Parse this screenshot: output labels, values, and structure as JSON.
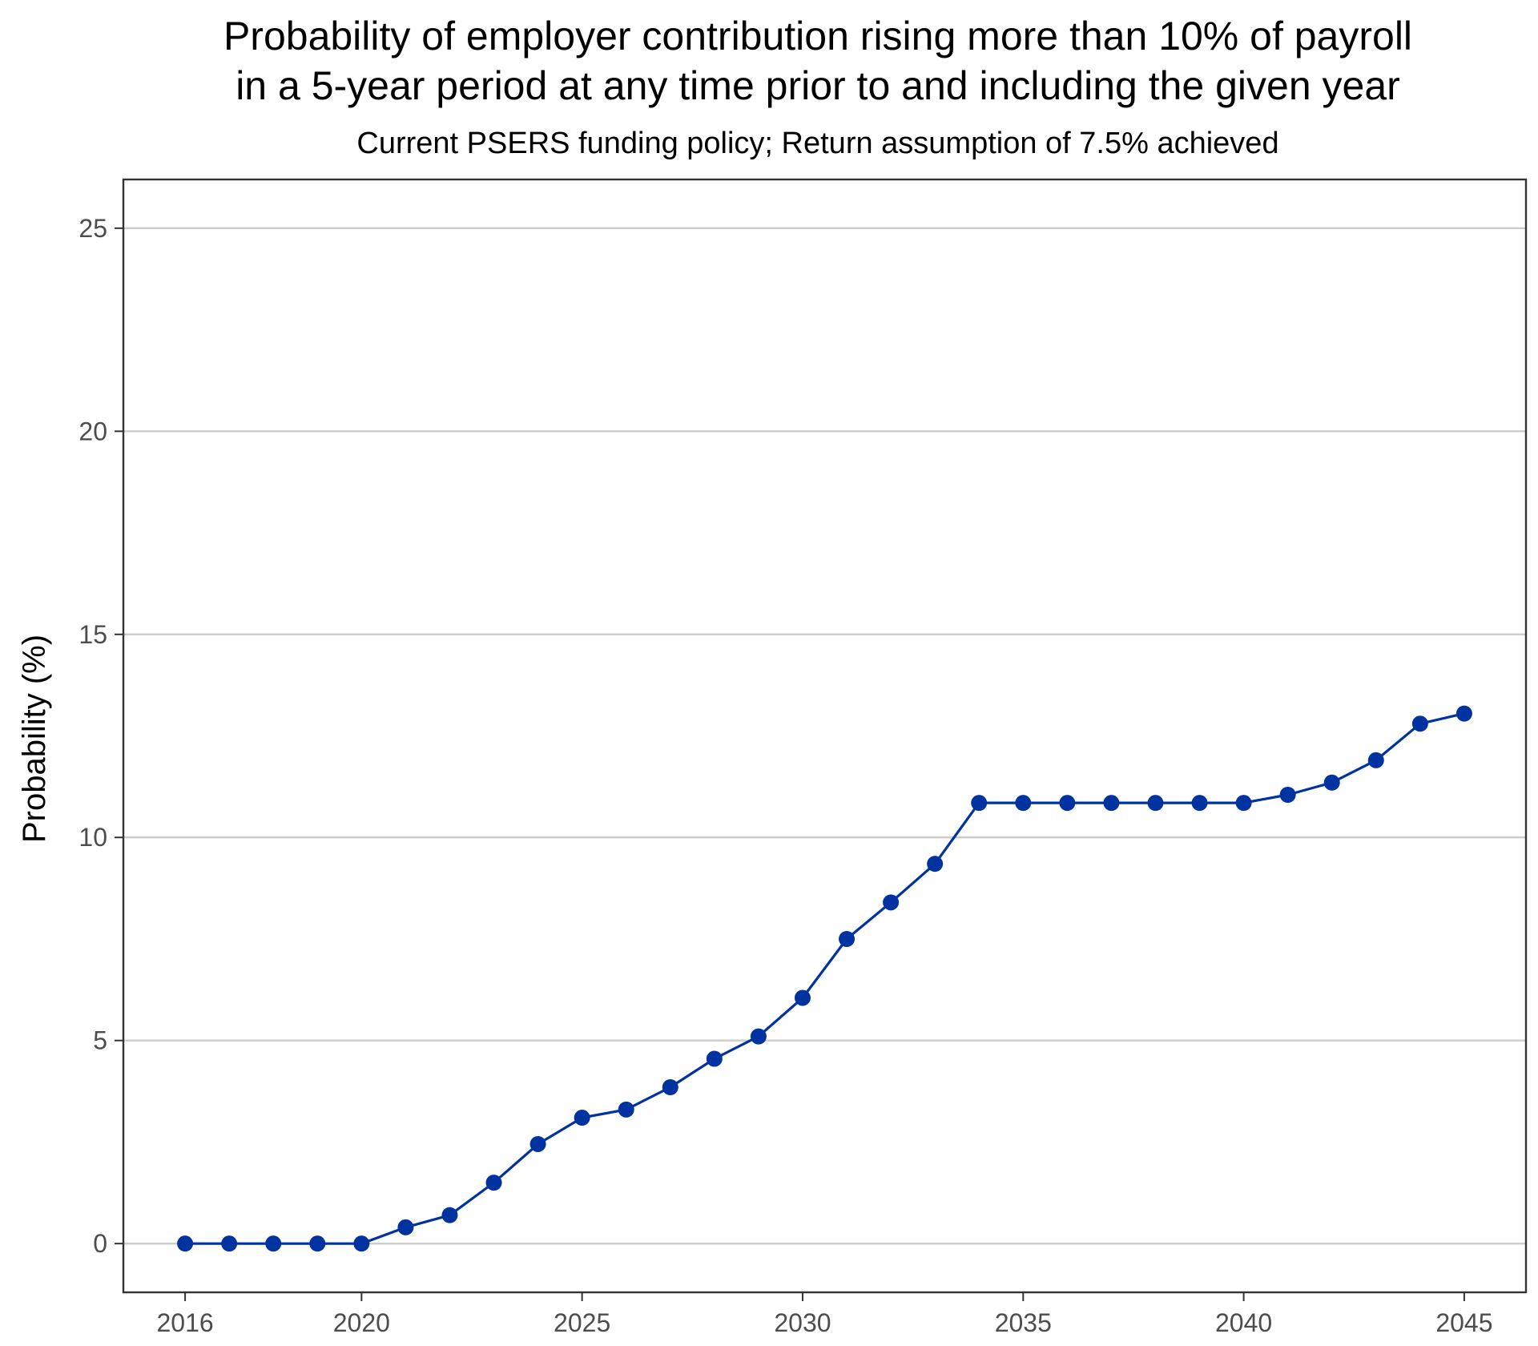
{
  "chart_data": {
    "type": "line",
    "title_lines": [
      "Probability of employer contribution rising more than 10% of payroll",
      "in a 5-year period at any time prior to and including the given year"
    ],
    "subtitle": "Current PSERS funding policy; Return assumption of 7.5% achieved",
    "ylabel": "Probability (%)",
    "xlabel": "",
    "xlim": [
      2014.6,
      2046.4
    ],
    "ylim": [
      -1.2,
      26.2
    ],
    "x_ticks": [
      2016,
      2020,
      2025,
      2030,
      2035,
      2040,
      2045
    ],
    "y_ticks": [
      0,
      5,
      10,
      15,
      20,
      25
    ],
    "grid": "horizontal major gridlines",
    "legend": "none",
    "series_color": "#0033A0",
    "series": [
      {
        "x": [
          2016,
          2017,
          2018,
          2019,
          2020,
          2021,
          2022,
          2023,
          2024,
          2025,
          2026,
          2027,
          2028,
          2029,
          2030,
          2031,
          2032,
          2033,
          2034,
          2035,
          2036,
          2037,
          2038,
          2039,
          2040,
          2041,
          2042,
          2043,
          2044,
          2045
        ],
        "values": [
          0,
          0,
          0,
          0,
          0,
          0.4,
          0.7,
          1.5,
          2.45,
          3.1,
          3.3,
          3.85,
          4.55,
          5.1,
          6.05,
          7.5,
          8.4,
          9.35,
          10.85,
          10.85,
          10.85,
          10.85,
          10.85,
          10.85,
          10.85,
          11.05,
          11.35,
          11.9,
          12.8,
          13.05
        ]
      }
    ]
  }
}
